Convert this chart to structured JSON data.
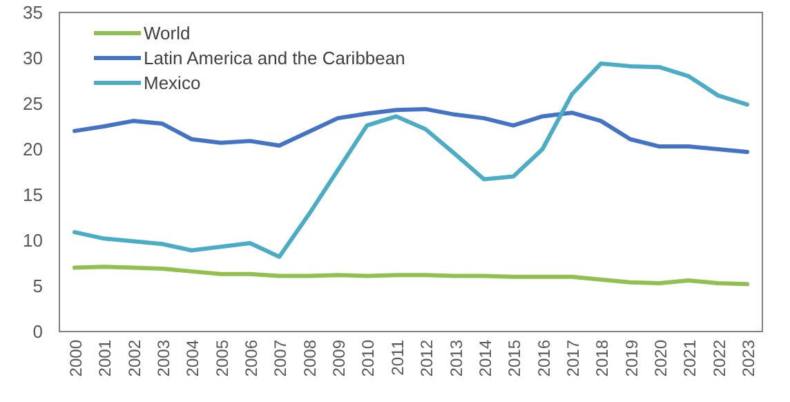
{
  "chart_data": {
    "type": "line",
    "categories": [
      "2000",
      "2001",
      "2002",
      "2003",
      "2004",
      "2005",
      "2006",
      "2007",
      "2008",
      "2009",
      "2010",
      "2011",
      "2012",
      "2013",
      "2014",
      "2015",
      "2016",
      "2017",
      "2018",
      "2019",
      "2020",
      "2021",
      "2022",
      "2023"
    ],
    "series": [
      {
        "name": "World",
        "color": "#92c050",
        "values": [
          7.0,
          7.1,
          7.0,
          6.9,
          6.6,
          6.3,
          6.3,
          6.1,
          6.1,
          6.2,
          6.1,
          6.2,
          6.2,
          6.1,
          6.1,
          6.0,
          6.0,
          6.0,
          5.7,
          5.4,
          5.3,
          5.6,
          5.3,
          5.2
        ]
      },
      {
        "name": "Latin America and the Caribbean",
        "color": "#4472c4",
        "values": [
          22.0,
          22.5,
          23.1,
          22.8,
          21.1,
          20.7,
          20.9,
          20.4,
          21.9,
          23.4,
          23.9,
          24.3,
          24.4,
          23.8,
          23.4,
          22.6,
          23.6,
          24.0,
          23.1,
          21.1,
          20.3,
          20.3,
          20.0,
          19.7
        ]
      },
      {
        "name": "Mexico",
        "color": "#4bacc6",
        "values": [
          10.9,
          10.2,
          9.9,
          9.6,
          8.9,
          9.3,
          9.7,
          8.2,
          12.8,
          17.7,
          22.6,
          23.6,
          22.2,
          19.5,
          16.7,
          17.0,
          20.0,
          26.0,
          29.4,
          29.1,
          29.0,
          28.0,
          25.9,
          24.9
        ]
      }
    ],
    "ylim": [
      0,
      35
    ],
    "yticks": [
      0,
      5,
      10,
      15,
      20,
      25,
      30,
      35
    ],
    "grid": false,
    "legend": "top left",
    "marker": "none",
    "line_style": "solid"
  }
}
